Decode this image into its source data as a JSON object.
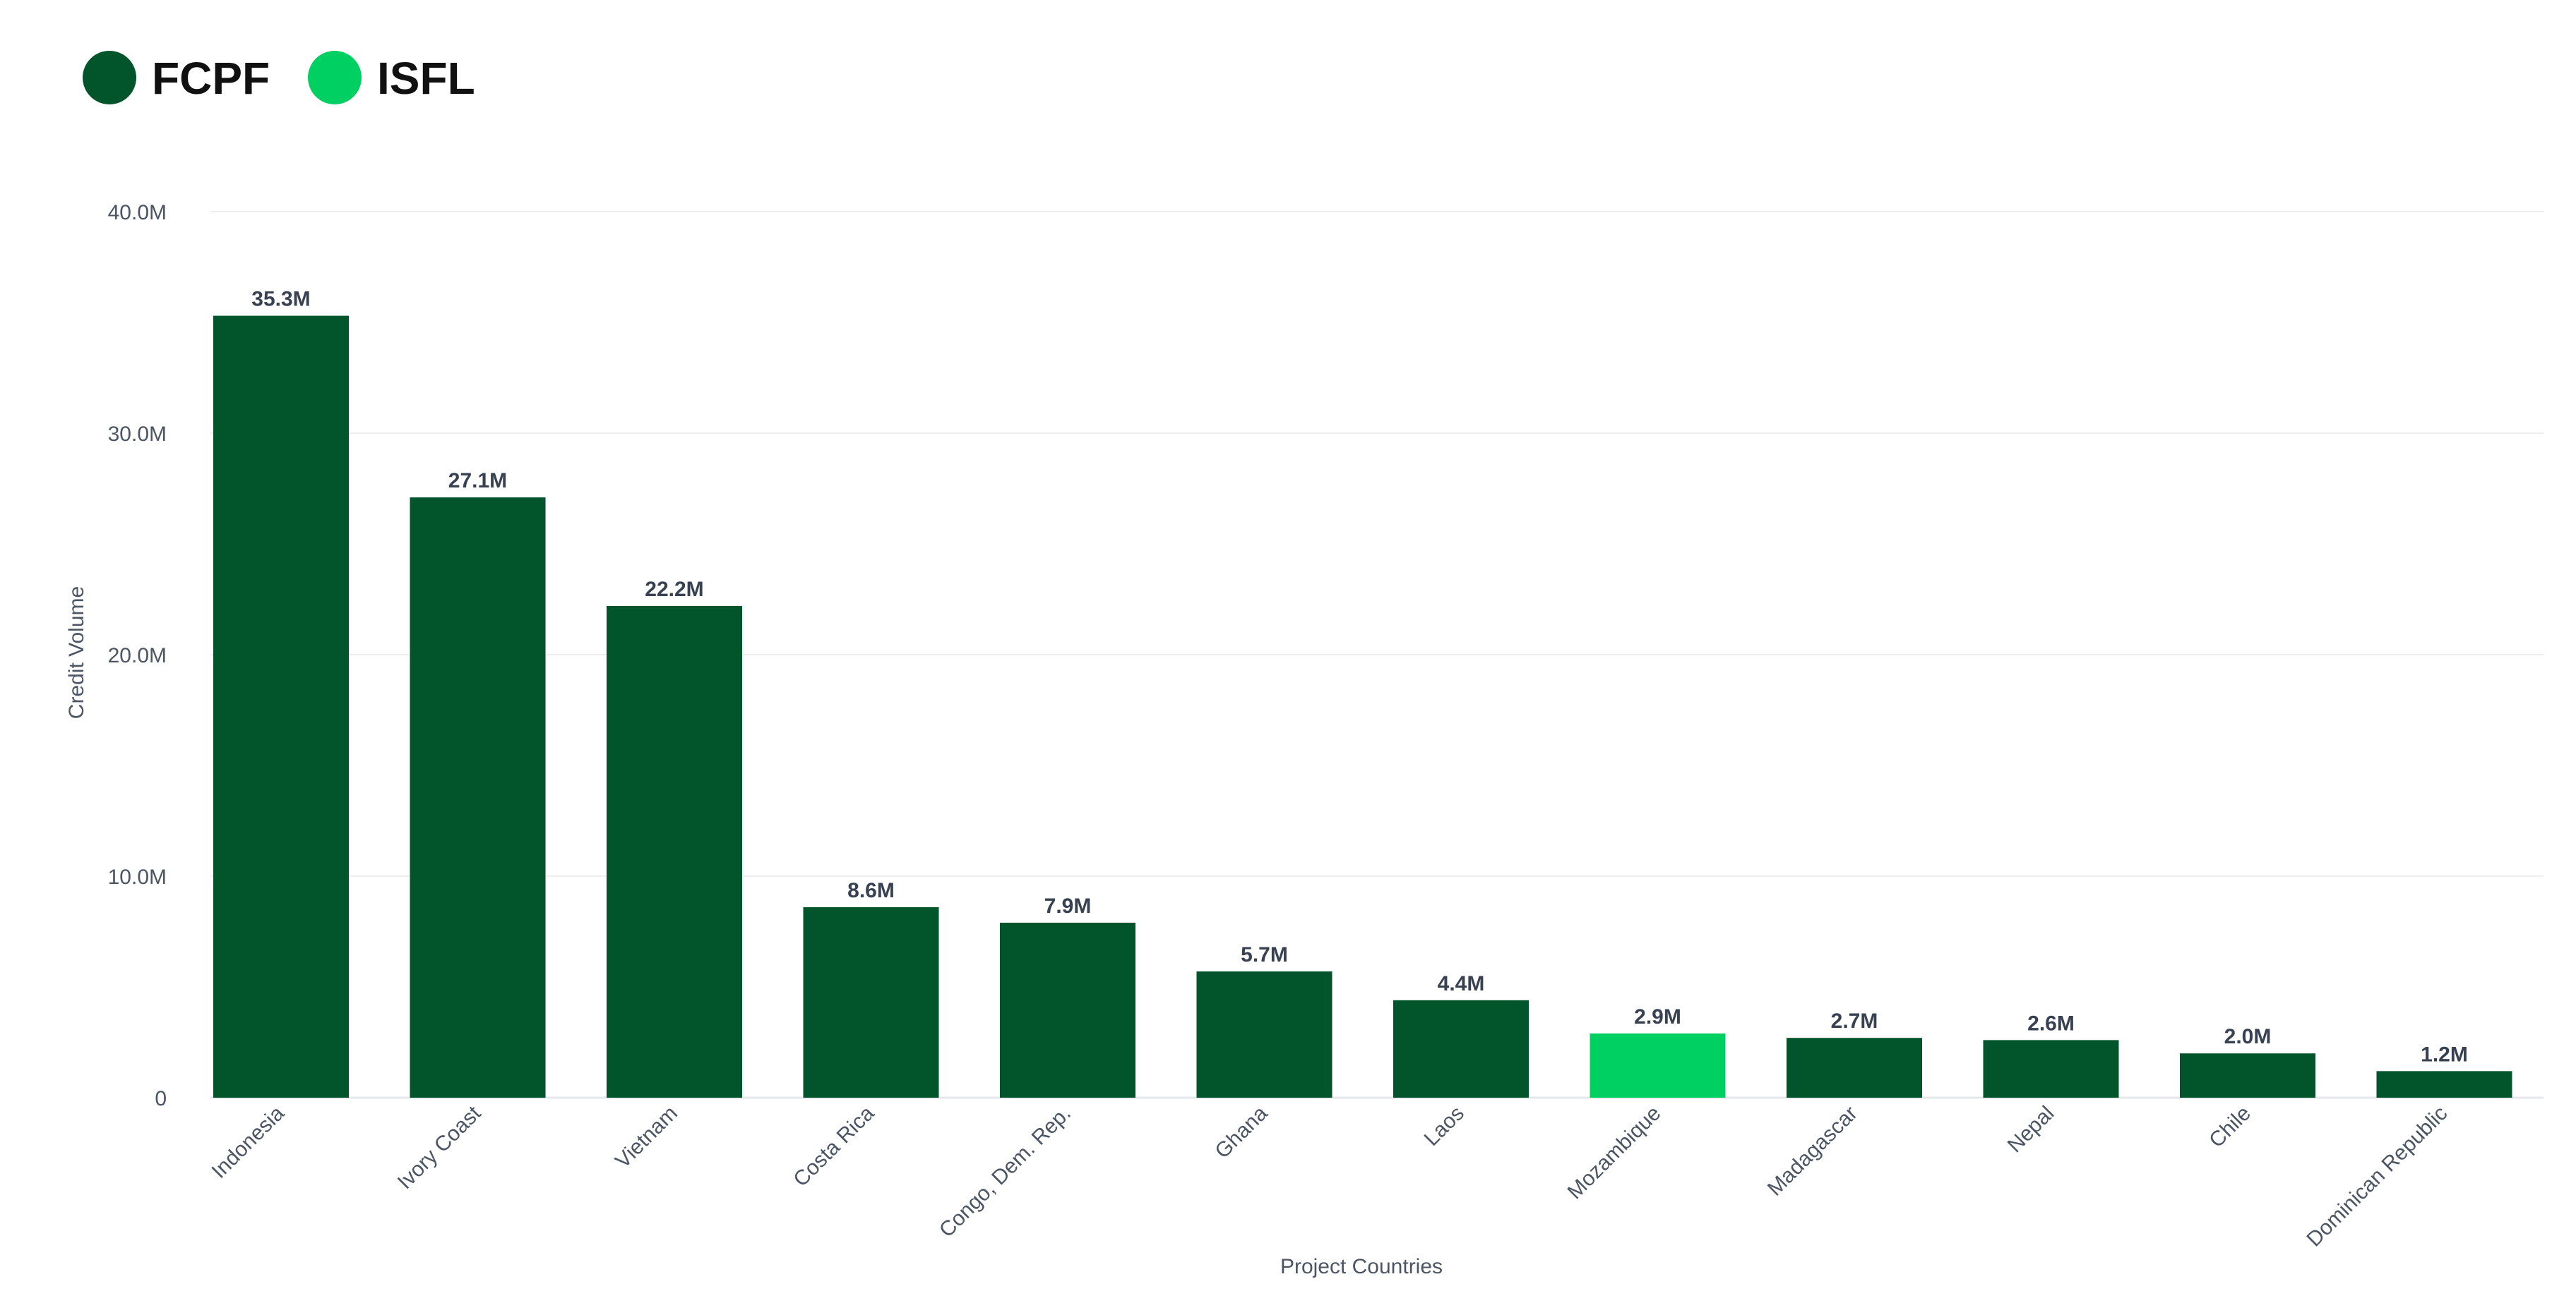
{
  "colors": {
    "FCPF": "#02552b",
    "ISFL": "#00d062"
  },
  "chart_data": {
    "type": "bar",
    "title": "",
    "xlabel": "Project Countries",
    "ylabel": "Credit Volume",
    "ylim": [
      0,
      40
    ],
    "yticks": [
      {
        "value": 0,
        "label": "0"
      },
      {
        "value": 10,
        "label": "10.0M"
      },
      {
        "value": 20,
        "label": "20.0M"
      },
      {
        "value": 30,
        "label": "30.0M"
      },
      {
        "value": 40,
        "label": "40.0M"
      }
    ],
    "grid": true,
    "legend_position": "top-left",
    "legend": [
      {
        "name": "FCPF",
        "color": "#02552b"
      },
      {
        "name": "ISFL",
        "color": "#00d062"
      }
    ],
    "categories": [
      "Indonesia",
      "Ivory Coast",
      "Vietnam",
      "Costa Rica",
      "Congo, Dem. Rep.",
      "Ghana",
      "Laos",
      "Mozambique",
      "Madagascar",
      "Nepal",
      "Chile",
      "Dominican Republic"
    ],
    "values": [
      35.3,
      27.1,
      22.2,
      8.6,
      7.9,
      5.7,
      4.4,
      2.9,
      2.7,
      2.6,
      2.0,
      1.2
    ],
    "value_labels": [
      "35.3M",
      "27.1M",
      "22.2M",
      "8.6M",
      "7.9M",
      "5.7M",
      "4.4M",
      "2.9M",
      "2.7M",
      "2.6M",
      "2.0M",
      "1.2M"
    ],
    "program": [
      "FCPF",
      "FCPF",
      "FCPF",
      "FCPF",
      "FCPF",
      "FCPF",
      "FCPF",
      "ISFL",
      "FCPF",
      "FCPF",
      "FCPF",
      "FCPF"
    ]
  }
}
